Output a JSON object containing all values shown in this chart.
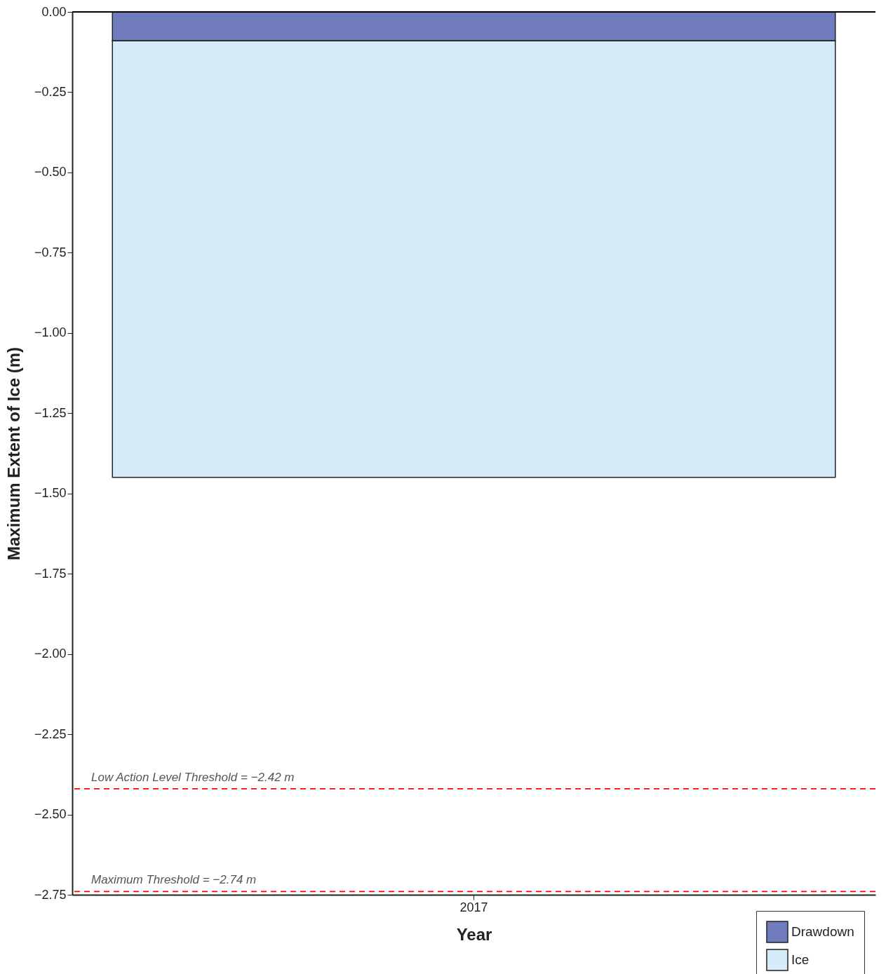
{
  "chart_data": {
    "type": "bar",
    "xlabel": "Year",
    "ylabel": "Maximum Extent of Ice (m)",
    "categories": [
      "2017"
    ],
    "stacked": true,
    "series": [
      {
        "name": "Drawdown",
        "color": "#6f7bbd",
        "values": [
          -0.09
        ]
      },
      {
        "name": "Ice",
        "color": "#d6ecf9",
        "values": [
          -1.36
        ]
      }
    ],
    "ylim": [
      -2.75,
      0
    ],
    "yticks": [
      {
        "value": 0,
        "label": "0.00"
      },
      {
        "value": -0.25,
        "label": "−0.25"
      },
      {
        "value": -0.5,
        "label": "−0.50"
      },
      {
        "value": -0.75,
        "label": "−0.75"
      },
      {
        "value": -1,
        "label": "−1.00"
      },
      {
        "value": -1.25,
        "label": "−1.25"
      },
      {
        "value": -1.5,
        "label": "−1.50"
      },
      {
        "value": -1.75,
        "label": "−1.75"
      },
      {
        "value": -2,
        "label": "−2.00"
      },
      {
        "value": -2.25,
        "label": "−2.25"
      },
      {
        "value": -2.5,
        "label": "−2.50"
      },
      {
        "value": -2.75,
        "label": "−2.75"
      }
    ],
    "ref_lines": [
      {
        "axis": "y",
        "value": 0,
        "label": null,
        "color": "#000000",
        "line_style": "solid"
      },
      {
        "axis": "y",
        "value": -2.42,
        "label": "Low Action Level Threshold = −2.42 m",
        "color": "#ff0000",
        "line_style": "dashed"
      },
      {
        "axis": "y",
        "value": -2.74,
        "label": "Maximum Threshold = −2.74 m",
        "color": "#ff0000",
        "line_style": "dashed"
      }
    ],
    "grid": false,
    "legend": "bottom right"
  }
}
